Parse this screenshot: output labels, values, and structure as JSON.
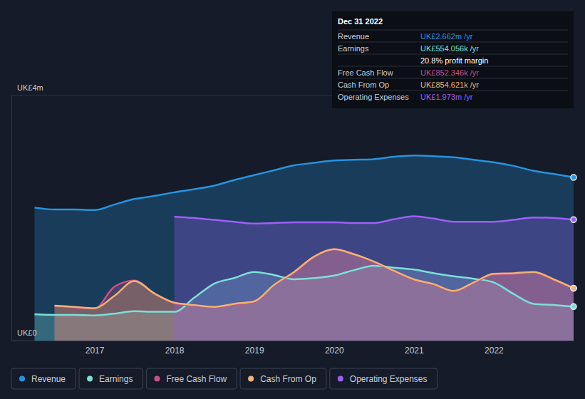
{
  "chart_data": {
    "type": "area",
    "x": [
      2016.25,
      2016.5,
      2016.75,
      2017,
      2017.25,
      2017.5,
      2017.75,
      2018,
      2018.25,
      2018.5,
      2018.75,
      2019,
      2019.25,
      2019.5,
      2019.75,
      2020,
      2020.25,
      2020.5,
      2020.75,
      2021,
      2021.25,
      2021.5,
      2021.75,
      2022,
      2022.25,
      2022.5,
      2022.75,
      2023
    ],
    "series": [
      {
        "name": "Revenue",
        "color": "#2394df",
        "values": [
          2.17,
          2.14,
          2.14,
          2.13,
          2.22,
          2.31,
          2.36,
          2.42,
          2.47,
          2.53,
          2.62,
          2.7,
          2.78,
          2.86,
          2.9,
          2.94,
          2.95,
          2.96,
          3.0,
          3.02,
          3.01,
          2.99,
          2.95,
          2.91,
          2.85,
          2.77,
          2.72,
          2.662
        ]
      },
      {
        "name": "Earnings",
        "color": "#7be0d6",
        "values": [
          0.43,
          0.42,
          0.42,
          0.41,
          0.44,
          0.48,
          0.47,
          0.47,
          0.7,
          0.93,
          1.02,
          1.12,
          1.07,
          1.0,
          1.02,
          1.06,
          1.15,
          1.22,
          1.19,
          1.16,
          1.1,
          1.05,
          1.01,
          0.95,
          0.76,
          0.6,
          0.58,
          0.554056
        ]
      },
      {
        "name": "Free Cash Flow",
        "color": "#c94f86",
        "values": [
          null,
          0.56,
          0.54,
          0.52,
          0.88,
          0.98,
          0.77,
          0.61,
          0.57,
          0.54,
          0.59,
          0.63,
          0.9,
          1.11,
          1.36,
          1.49,
          1.41,
          1.28,
          1.13,
          0.99,
          0.91,
          0.8,
          0.94,
          1.08,
          1.09,
          1.11,
          0.99,
          0.852346
        ]
      },
      {
        "name": "Cash From Op",
        "color": "#f2b272",
        "values": [
          null,
          0.57,
          0.55,
          0.53,
          0.73,
          0.97,
          0.77,
          0.62,
          0.58,
          0.55,
          0.6,
          0.64,
          0.91,
          1.12,
          1.37,
          1.49,
          1.41,
          1.29,
          1.14,
          1.0,
          0.92,
          0.81,
          0.95,
          1.09,
          1.1,
          1.12,
          1.0,
          0.854621
        ]
      },
      {
        "name": "Operating Expenses",
        "color": "#9e5ff6",
        "values": [
          null,
          null,
          null,
          null,
          null,
          null,
          null,
          2.02,
          2.0,
          1.97,
          1.94,
          1.91,
          1.92,
          1.93,
          1.93,
          1.93,
          1.92,
          1.92,
          1.98,
          2.03,
          1.99,
          1.94,
          1.94,
          1.94,
          1.97,
          2.01,
          2.0,
          1.973
        ]
      }
    ],
    "xlim": [
      2015.96,
      2023
    ],
    "xticks": [
      2017,
      2018,
      2019,
      2020,
      2021,
      2022
    ],
    "ylim": [
      0,
      4
    ],
    "yticks": [
      {
        "value": 0,
        "label": "UK£0"
      },
      {
        "value": 4,
        "label": "UK£4m"
      }
    ],
    "grid": true,
    "legend": "bottom-left",
    "tooltip": {
      "title": "Dec 31 2022",
      "rows": [
        {
          "label": "Revenue",
          "value": "UK£2.662m /yr",
          "color": "#2394df"
        },
        {
          "label": "Earnings",
          "value": "UK£554.056k /yr",
          "color": "#7be0d6"
        },
        {
          "value": "20.8% profit margin",
          "color": "#ffffff"
        },
        {
          "label": "Free Cash Flow",
          "value": "UK£852.346k /yr",
          "color": "#c94f86"
        },
        {
          "label": "Cash From Op",
          "value": "UK£854.621k /yr",
          "color": "#f2b272"
        },
        {
          "label": "Operating Expenses",
          "value": "UK£1.973m /yr",
          "color": "#9e5ff6"
        }
      ]
    }
  }
}
